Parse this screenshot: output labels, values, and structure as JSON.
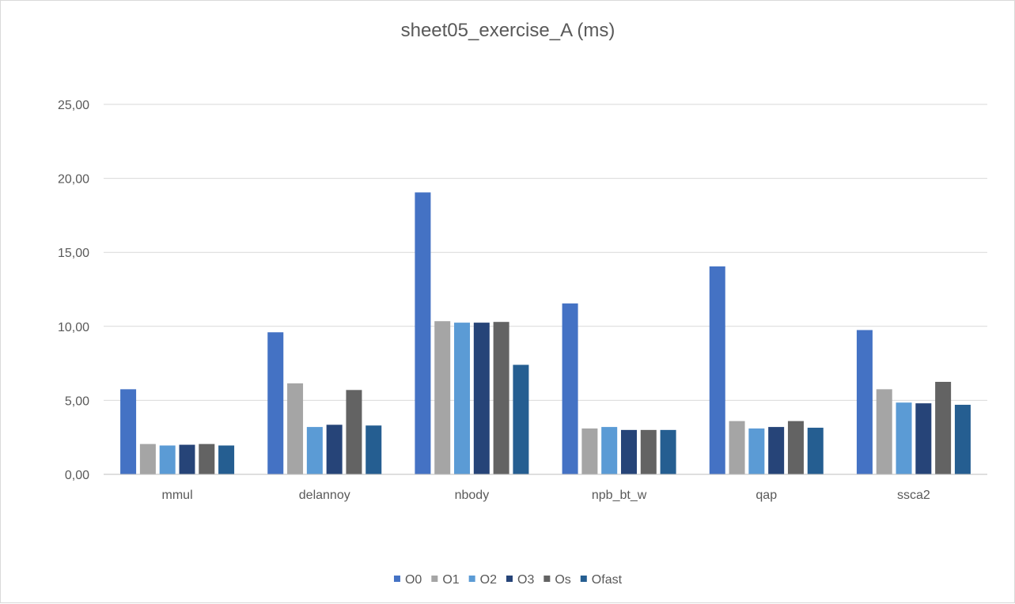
{
  "chart_data": {
    "type": "bar",
    "title": "sheet05_exercise_A  (ms)",
    "xlabel": "",
    "ylabel": "",
    "ylim": [
      0,
      25
    ],
    "yticks": [
      0,
      5,
      10,
      15,
      20,
      25
    ],
    "ytick_labels": [
      "0,00",
      "5,00",
      "10,00",
      "15,00",
      "20,00",
      "25,00"
    ],
    "grid": true,
    "legend_position": "bottom",
    "categories": [
      "mmul",
      "delannoy",
      "nbody",
      "npb_bt_w",
      "qap",
      "ssca2"
    ],
    "series": [
      {
        "name": "O0",
        "color": "#4472c4",
        "values": [
          5.75,
          9.6,
          19.05,
          11.55,
          14.05,
          9.75
        ]
      },
      {
        "name": "O1",
        "color": "#a5a5a5",
        "values": [
          2.05,
          6.15,
          10.35,
          3.1,
          3.6,
          5.75
        ]
      },
      {
        "name": "O2",
        "color": "#5b9bd5",
        "values": [
          1.95,
          3.2,
          10.25,
          3.2,
          3.1,
          4.85
        ]
      },
      {
        "name": "O3",
        "color": "#264478",
        "values": [
          2.0,
          3.35,
          10.25,
          3.0,
          3.2,
          4.8
        ]
      },
      {
        "name": "Os",
        "color": "#636363",
        "values": [
          2.05,
          5.7,
          10.3,
          3.0,
          3.6,
          6.25
        ]
      },
      {
        "name": "Ofast",
        "color": "#255e91",
        "values": [
          1.95,
          3.3,
          7.4,
          3.0,
          3.15,
          4.7
        ]
      }
    ]
  }
}
